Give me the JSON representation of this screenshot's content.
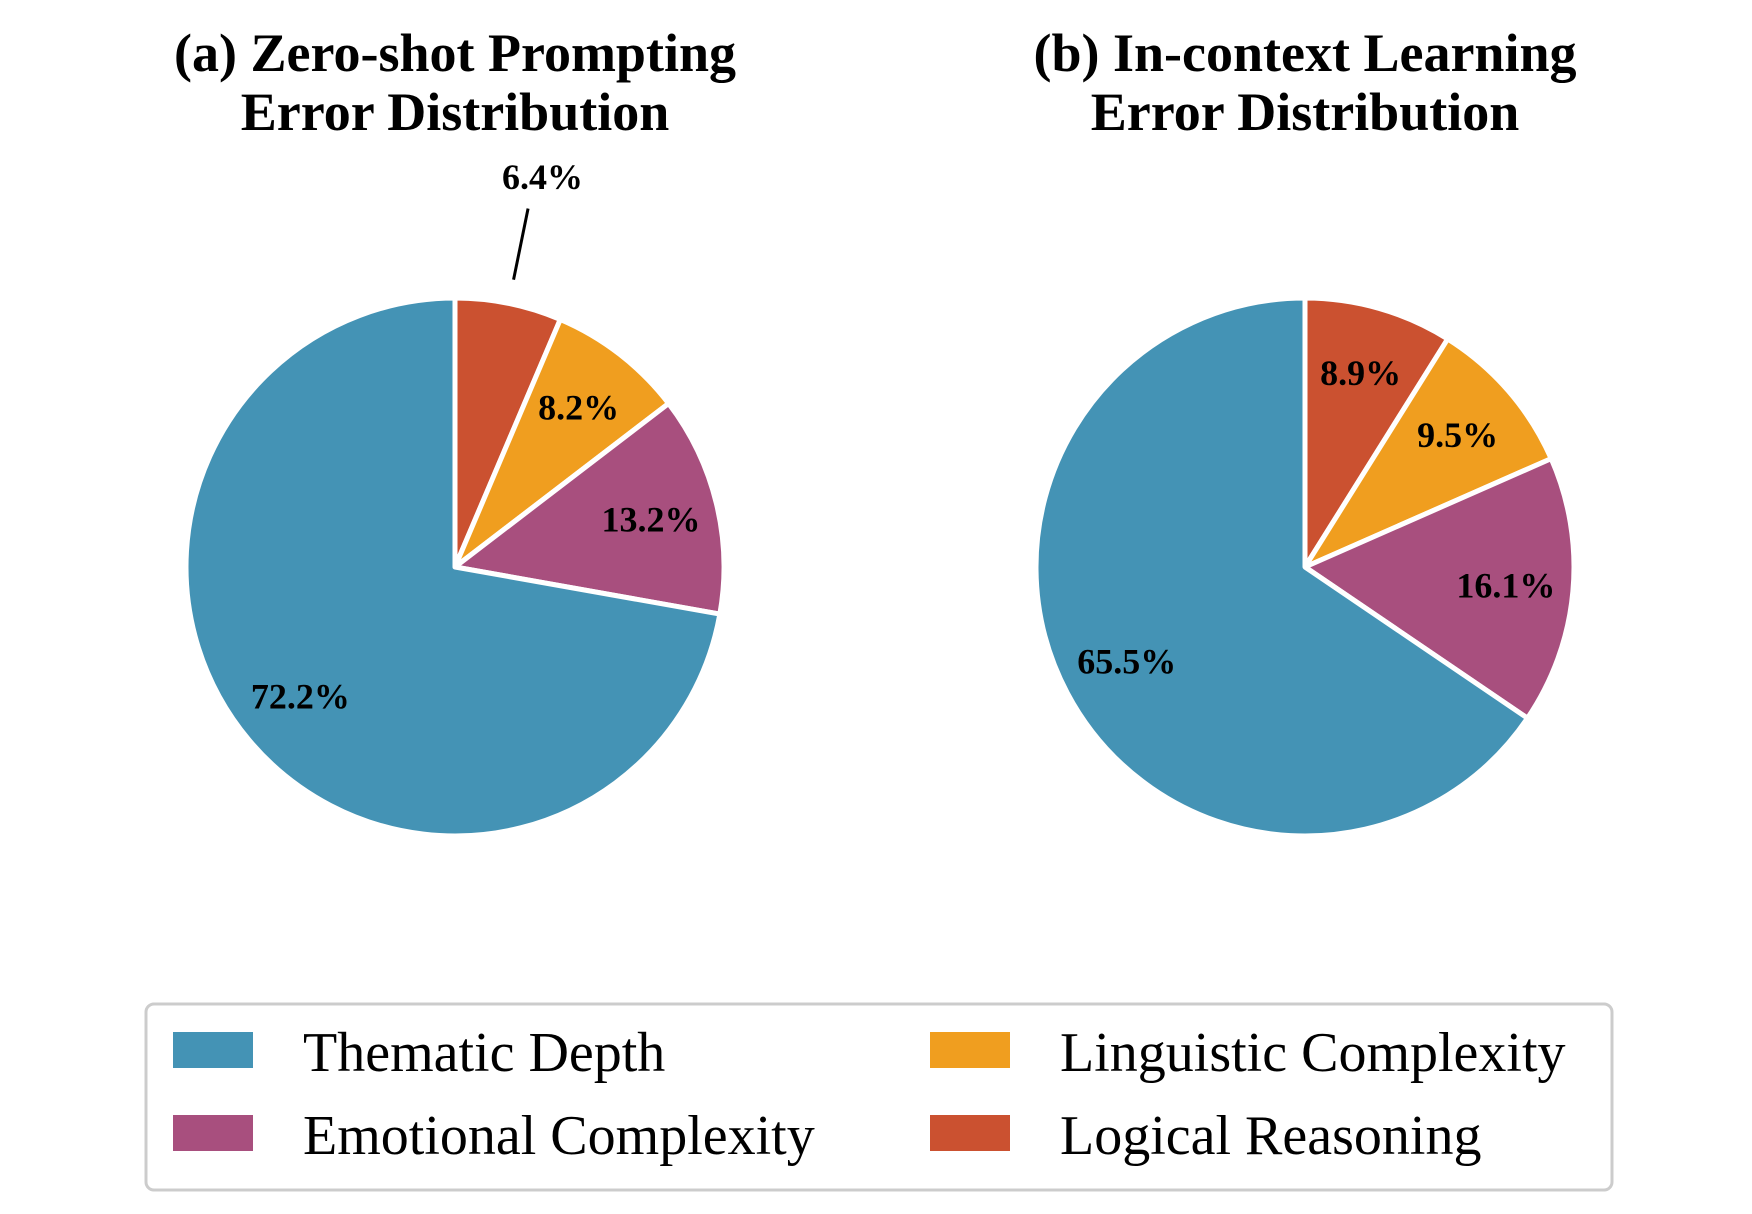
{
  "chart_data": [
    {
      "type": "pie",
      "title_line1": "(a) Zero-shot Prompting",
      "title_line2": "Error Distribution",
      "start": "top, clockwise",
      "slices": [
        {
          "name": "Logical Reasoning",
          "value": 6.4,
          "label": "6.4%",
          "label_mode": "leader"
        },
        {
          "name": "Linguistic Complexity",
          "value": 8.2,
          "label": "8.2%",
          "label_mode": "inside"
        },
        {
          "name": "Emotional Complexity",
          "value": 13.2,
          "label": "13.2%",
          "label_mode": "inside"
        },
        {
          "name": "Thematic Depth",
          "value": 72.2,
          "label": "72.2%",
          "label_mode": "inside"
        }
      ]
    },
    {
      "type": "pie",
      "title_line1": "(b) In-context Learning",
      "title_line2": "Error Distribution",
      "start": "top, clockwise",
      "slices": [
        {
          "name": "Logical Reasoning",
          "value": 8.9,
          "label": "8.9%",
          "label_mode": "inside"
        },
        {
          "name": "Linguistic Complexity",
          "value": 9.5,
          "label": "9.5%",
          "label_mode": "inside"
        },
        {
          "name": "Emotional Complexity",
          "value": 16.1,
          "label": "16.1%",
          "label_mode": "inside"
        },
        {
          "name": "Thematic Depth",
          "value": 65.5,
          "label": "65.5%",
          "label_mode": "inside"
        }
      ]
    }
  ],
  "legend": {
    "placement": "bottom-center",
    "items": [
      {
        "label": "Thematic Depth",
        "color": "#4493B5"
      },
      {
        "label": "Linguistic Complexity",
        "color": "#F09E1F"
      },
      {
        "label": "Emotional Complexity",
        "color": "#A84F7E"
      },
      {
        "label": "Logical Reasoning",
        "color": "#CB5130"
      }
    ]
  },
  "colors": {
    "Thematic Depth": "#4493B5",
    "Linguistic Complexity": "#F09E1F",
    "Emotional Complexity": "#A84F7E",
    "Logical Reasoning": "#CB5130"
  }
}
